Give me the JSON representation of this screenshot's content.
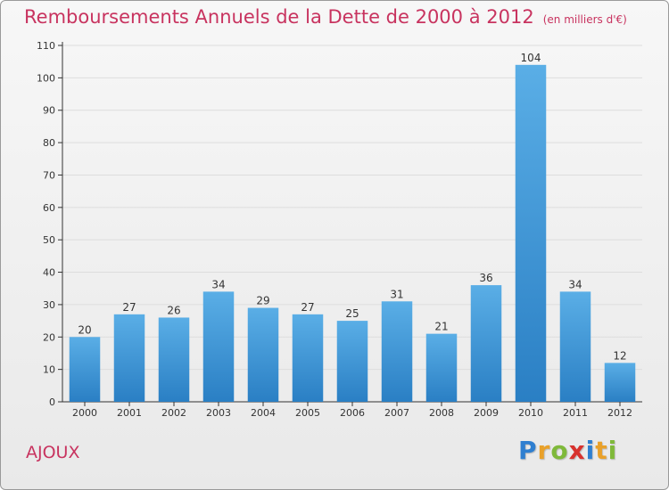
{
  "header": {
    "title": "Remboursements Annuels de la Dette de 2000 à 2012",
    "unit": "(en milliers d'€)"
  },
  "commune": "AJOUX",
  "logo": {
    "text": "Proxiti",
    "letters": [
      {
        "ch": "P",
        "color": "#2f7fd0"
      },
      {
        "ch": "r",
        "color": "#e9a12a"
      },
      {
        "ch": "o",
        "color": "#7fb93a"
      },
      {
        "ch": "x",
        "color": "#d8322e"
      },
      {
        "ch": "i",
        "color": "#2f7fd0"
      },
      {
        "ch": "t",
        "color": "#e9a12a"
      },
      {
        "ch": "i",
        "color": "#7fb93a"
      }
    ]
  },
  "colors": {
    "bar_light": "#5aaee6",
    "bar_dark": "#2a7fc4",
    "title": "#c8335f",
    "axis": "#333333",
    "grid": "#dddddd"
  },
  "chart_data": {
    "type": "bar",
    "title": "Remboursements Annuels de la Dette de 2000 à 2012",
    "subtitle": "(en milliers d'€)",
    "xlabel": "",
    "ylabel": "",
    "categories": [
      "2000",
      "2001",
      "2002",
      "2003",
      "2004",
      "2005",
      "2006",
      "2007",
      "2008",
      "2009",
      "2010",
      "2011",
      "2012"
    ],
    "values": [
      20,
      27,
      26,
      34,
      29,
      27,
      25,
      31,
      21,
      36,
      104,
      34,
      12
    ],
    "ylim": [
      0,
      110
    ],
    "yticks": [
      0,
      10,
      20,
      30,
      40,
      50,
      60,
      70,
      80,
      90,
      100,
      110
    ],
    "grid": true,
    "legend": "none"
  }
}
